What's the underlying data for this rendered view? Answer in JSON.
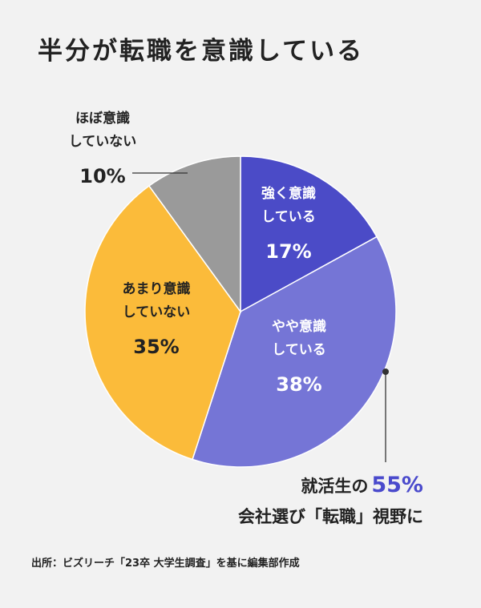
{
  "title": "半分が転職を意識している",
  "chart_data": {
    "type": "pie",
    "categories": [
      "強く意識している",
      "やや意識している",
      "あまり意識していない",
      "ほぼ意識していない"
    ],
    "values": [
      17,
      38,
      35,
      10
    ],
    "unit": "%",
    "slices": [
      {
        "label_lines": [
          "強く意識",
          "している"
        ],
        "value": 17,
        "color": "#4b4bc7",
        "text_color": "#ffffff"
      },
      {
        "label_lines": [
          "やや意識",
          "している"
        ],
        "value": 38,
        "color": "#7575d6",
        "text_color": "#ffffff"
      },
      {
        "label_lines": [
          "あまり意識",
          "していない"
        ],
        "value": 35,
        "color": "#fbbb3a",
        "text_color": "#222222"
      },
      {
        "label_lines": [
          "ほぼ意識",
          "していない"
        ],
        "value": 10,
        "color": "#9a9a9a",
        "text_color": "#222222"
      }
    ]
  },
  "note": {
    "line1_prefix": "就活生の",
    "line1_value": "55%",
    "line2": "会社選び「転職」視野に"
  },
  "source": "出所：ビズリーチ「23卒 大学生調査」を基に編集部作成"
}
